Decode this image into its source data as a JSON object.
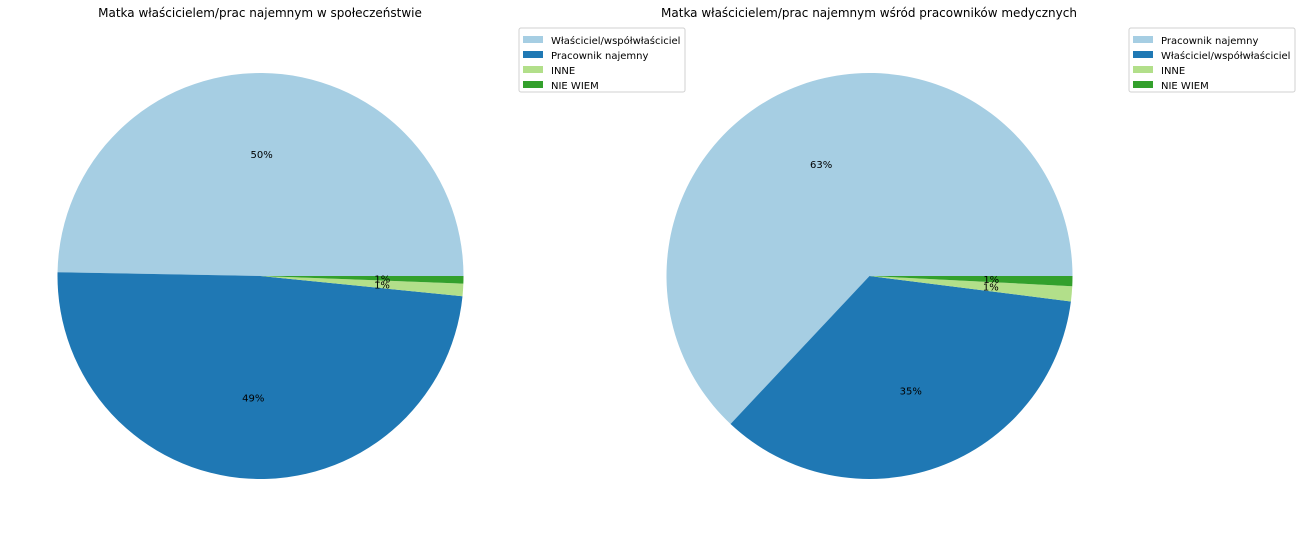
{
  "chart_data": [
    {
      "type": "pie",
      "title": "Matka właścicielem/prac najemnym w społeczeństwie",
      "legend_position": "upper-right-outside",
      "start_angle_deg": 0,
      "direction": "counterclockwise",
      "slices": [
        {
          "label": "Właściciel/współwłaściciel",
          "value": 50,
          "text": "50%",
          "color": "#a6cee3"
        },
        {
          "label": "Pracownik najemny",
          "value": 49,
          "text": "49%",
          "color": "#1f78b4"
        },
        {
          "label": "INNE",
          "value": 1,
          "text": "1%",
          "color": "#b2df8a"
        },
        {
          "label": "NIE WIEM",
          "value": 0.6,
          "text": "1%",
          "color": "#33a02c"
        }
      ]
    },
    {
      "type": "pie",
      "title": "Matka właścicielem/prac najemnym wśród pracowników medycznych",
      "legend_position": "upper-right-outside",
      "start_angle_deg": 0,
      "direction": "counterclockwise",
      "slices": [
        {
          "label": "Pracownik najemny",
          "value": 63,
          "text": "63%",
          "color": "#a6cee3"
        },
        {
          "label": "Właściciel/współwłaściciel",
          "value": 35,
          "text": "35%",
          "color": "#1f78b4"
        },
        {
          "label": "INNE",
          "value": 1.2,
          "text": "1%",
          "color": "#b2df8a"
        },
        {
          "label": "NIE WIEM",
          "value": 0.8,
          "text": "1%",
          "color": "#33a02c"
        }
      ]
    }
  ]
}
